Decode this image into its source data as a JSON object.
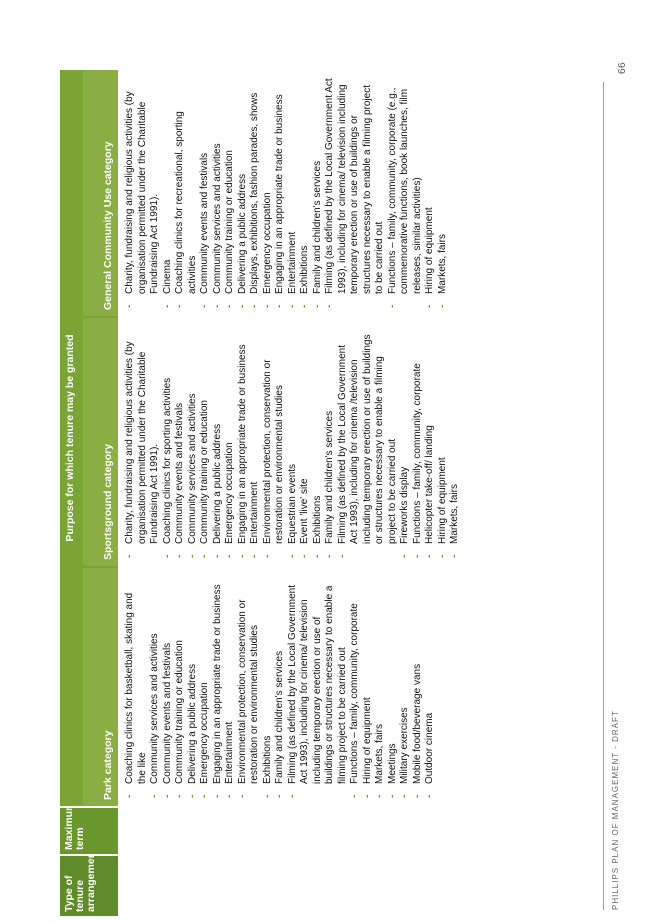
{
  "page_number": "66",
  "footer": "PHILLIPS PLAN OF MANAGEMENT - DRAFT",
  "header": {
    "type": "Type of tenure arrangement",
    "term": "Maximum term",
    "purpose": "Purpose for which tenure may be granted",
    "park": "Park category",
    "sport": "Sportsground category",
    "general": "General Community Use category"
  },
  "marker": "-",
  "park_items": [
    "Coaching clinics for basketball, skating and the like",
    "Community services and activities",
    "Community events and festivals",
    "Community training or education",
    "Delivering a public address",
    "Emergency occupation",
    "Engaging in an appropriate trade or business",
    "Entertainment",
    "Environmental protection, conservation or restoration or environmental studies",
    "Exhibitions",
    "Family and children's services",
    "Filming (as defined by the Local Government Act 1993), including for cinema/ television including temporary erection or use of buildings or structures necessary to enable a filming project to be carried out",
    "Functions – family, community, corporate",
    "Hiring of equipment",
    "Markets, fairs",
    "Meetings",
    "Military exercises",
    "Mobile food/beverage vans",
    "Outdoor cinema"
  ],
  "sport_items": [
    "Charity, fundraising and religious activities (by organisation permitted under the Charitable Fundraising Act 1991).",
    "Coaching clinics for sporting activities",
    "Community events and festivals",
    "Community services and activities",
    "Community training or education",
    "Delivering a public address",
    "Emergency occupation",
    "Engaging in an appropriate trade or business",
    "Entertainment",
    "Environmental protection, conservation or restoration or environmental studies",
    "Equestrian events",
    "Event 'live' site",
    "Exhibitions",
    "Family and children's services",
    "Filming (as defined by the Local Government Act 1993), including for cinema /television including temporary erection or use of buildings or structures necessary to enable a filming project to be carried out",
    "Fireworks display",
    "Functions – family, community, corporate",
    "Helicopter take-off/ landing",
    "Hiring of equipment",
    "Markets, fairs"
  ],
  "general_items": [
    "Charity, fundraising and religious activities (by organisation permitted under the Charitable Fundraising Act 1991).",
    "Cinema",
    "Coaching clinics for recreational, sporting activities",
    "Community events and festivals",
    "Community services and activities",
    "Community training or education",
    "Delivering a public address",
    "Displays, exhibitions, fashion parades, shows",
    "Emergency occupation",
    "Engaging in an appropriate trade or business",
    "Entertainment",
    "Exhibitions",
    "Family and children's services",
    "Filming (as defined by the Local Government Act 1993), including for cinema/ television including temporary erection or use of buildings or structures necessary to enable a filming project to be carried out",
    "Functions – family, community, corporate (e.g., commemorative functions, book launches, film releases, similar activities)",
    "Hiring of equipment",
    "Markets, fairs"
  ],
  "colors": {
    "header_dark": "#5f8b29",
    "header_mid": "#7aa435",
    "header_light": "#8aae43",
    "marker": "#6a972d"
  }
}
